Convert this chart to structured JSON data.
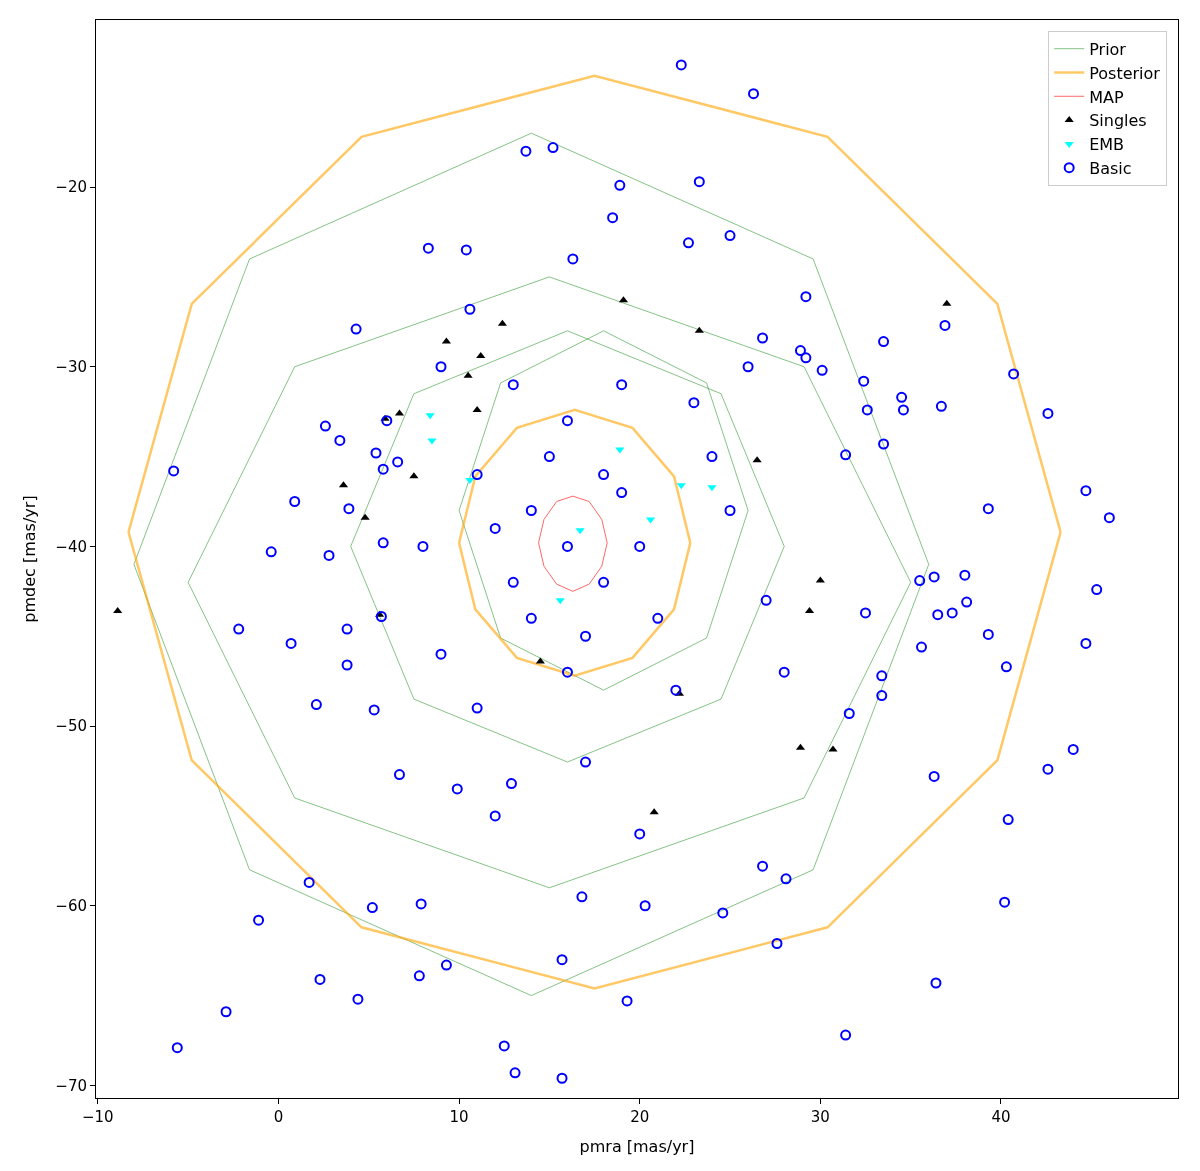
{
  "chart_data": {
    "type": "line",
    "xlabel": "pmra [mas/yr]",
    "ylabel": "pmdec [mas/yr]",
    "xlim": [
      -10.1,
      49.8
    ],
    "ylim": [
      -70.7,
      -10.7
    ],
    "xticks": [
      -10,
      0,
      10,
      20,
      30,
      40
    ],
    "yticks": [
      -70,
      -60,
      -50,
      -40,
      -30,
      -20
    ],
    "legend": "top right",
    "series": [
      {
        "name": "Prior",
        "color": "#008000",
        "marker": "none",
        "line_style": "solid",
        "x": [
          4,
          7.5,
          16,
          24.5,
          28
        ],
        "values": [
          -40,
          -31.5,
          -28,
          -31.5,
          -40
        ]
      },
      {
        "color": "#008000",
        "marker": "none",
        "line_style": "solid",
        "x": [
          4,
          7.5,
          16,
          24.5,
          28
        ],
        "values": [
          -40,
          -48.5,
          -52,
          -48.5,
          -40
        ]
      },
      {
        "color": "#008000",
        "marker": "none",
        "line_style": "solid",
        "x": [
          -5,
          0.9,
          15,
          29.1,
          35
        ],
        "values": [
          -42,
          -30,
          -25,
          -30,
          -42
        ]
      },
      {
        "color": "#008000",
        "marker": "none",
        "line_style": "solid",
        "x": [
          -5,
          0.9,
          15,
          29.1,
          35
        ],
        "values": [
          -42,
          -54,
          -59,
          -54,
          -42
        ]
      },
      {
        "color": "#008000",
        "marker": "none",
        "line_style": "solid",
        "x": [
          10,
          12.3,
          18,
          23.7,
          26
        ],
        "values": [
          -38,
          -30.9,
          -28,
          -30.9,
          -38
        ]
      },
      {
        "color": "#008000",
        "marker": "none",
        "line_style": "solid",
        "x": [
          10,
          12.3,
          18,
          23.7,
          26
        ],
        "values": [
          -38,
          -45.1,
          -48,
          -45.1,
          -38
        ]
      },
      {
        "color": "#008000",
        "marker": "none",
        "line_style": "solid",
        "x": [
          -8,
          -1.6,
          14,
          29.6,
          36
        ],
        "values": [
          -41,
          -24,
          -17,
          -24,
          -41
        ]
      },
      {
        "color": "#008000",
        "marker": "none",
        "line_style": "solid",
        "x": [
          -8,
          -1.6,
          14,
          29.6,
          36
        ],
        "values": [
          -41,
          -58,
          -65,
          -58,
          -41
        ]
      },
      {
        "name": "Posterior",
        "color": "#ffa500",
        "marker": "none",
        "line_style": "solid",
        "x": [
          -8.3,
          -4.8,
          4.6,
          17.5,
          30.4,
          39.8,
          43.3
        ],
        "values": [
          -39.2,
          -26.5,
          -17.2,
          -13.8,
          -17.2,
          -26.5,
          -39.2
        ]
      },
      {
        "color": "#ffa500",
        "marker": "none",
        "line_style": "solid",
        "x": [
          -8.3,
          -4.8,
          4.6,
          17.5,
          30.4,
          39.8,
          43.3
        ],
        "values": [
          -39.2,
          -51.9,
          -61.2,
          -64.6,
          -61.2,
          -51.9,
          -39.2
        ]
      },
      {
        "color": "#ffa500",
        "marker": "none",
        "line_style": "solid",
        "x": [
          10.0,
          10.9,
          13.2,
          16.4,
          19.6,
          21.9,
          22.8
        ],
        "values": [
          -39.8,
          -36.1,
          -33.4,
          -32.4,
          -33.4,
          -36.1,
          -39.8
        ]
      },
      {
        "color": "#ffa500",
        "marker": "none",
        "line_style": "solid",
        "x": [
          10.0,
          10.9,
          13.2,
          16.4,
          19.6,
          21.9,
          22.8
        ],
        "values": [
          -39.8,
          -43.5,
          -46.2,
          -47.2,
          -46.2,
          -43.5,
          -39.8
        ]
      },
      {
        "name": "MAP",
        "color": "#ff0000",
        "marker": "none",
        "line_style": "solid",
        "x": [
          14.4,
          14.7,
          15.4,
          16.3,
          17.2,
          17.9,
          18.2
        ],
        "values": [
          -39.8,
          -38.5,
          -37.5,
          -37.2,
          -37.5,
          -38.5,
          -39.8
        ]
      },
      {
        "color": "#ff0000",
        "marker": "none",
        "line_style": "solid",
        "x": [
          14.4,
          14.7,
          15.4,
          16.3,
          17.2,
          17.9,
          18.2
        ],
        "values": [
          -39.8,
          -41.1,
          -42.1,
          -42.5,
          -42.1,
          -41.1,
          -39.8
        ]
      },
      {
        "name": "Singles",
        "type": "scatter",
        "color": "#000000",
        "marker": "triangle",
        "x": [
          -8.9,
          3.6,
          4.8,
          5.6,
          5.9,
          6.7,
          7.5,
          9.3,
          10.5,
          12.4,
          19.1,
          23.3,
          37.0,
          26.5,
          22.2,
          20.8,
          28.9,
          30.7,
          29.4,
          30.0,
          14.5,
          11.0,
          11.2
        ],
        "values": [
          -43.6,
          -36.6,
          -38.4,
          -43.8,
          -32.9,
          -32.6,
          -36.1,
          -28.6,
          -30.5,
          -27.6,
          -26.3,
          -28.0,
          -26.5,
          -35.2,
          -48.2,
          -54.8,
          -51.2,
          -51.3,
          -43.6,
          -41.9,
          -46.4,
          -32.4,
          -29.4
        ]
      },
      {
        "name": "EMB",
        "type": "scatter",
        "color": "#00ffff",
        "marker": "triangle_down",
        "x": [
          8.4,
          8.5,
          22.3,
          24.0,
          16.7,
          18.9,
          10.6,
          15.6,
          20.6
        ],
        "values": [
          -32.7,
          -34.1,
          -36.6,
          -36.7,
          -39.1,
          -34.6,
          -36.3,
          -43.0,
          -38.5
        ]
      },
      {
        "name": "Basic",
        "type": "scatter",
        "color": "#0000ff",
        "marker": "circle",
        "x": [
          22.3,
          26.3,
          15.2,
          13.7,
          23.3,
          18.9,
          18.5,
          8.3,
          10.4,
          25.0,
          22.7,
          16.3,
          29.2,
          10.6,
          4.3,
          36.9,
          26.8,
          33.5,
          28.9,
          29.2,
          40.7,
          32.4,
          30.1,
          34.6,
          36.7,
          34.5,
          32.6,
          42.6,
          2.6,
          3.4,
          5.4,
          33.5,
          31.4,
          -5.8,
          5.8,
          6.6,
          44.7,
          46.0,
          39.3,
          0.9,
          3.9,
          -0.4,
          2.8,
          5.8,
          35.5,
          38.0,
          36.3,
          45.3,
          36.5,
          37.3,
          38.1,
          32.5,
          -2.2,
          3.8,
          5.7,
          0.7,
          35.6,
          39.3,
          40.3,
          33.4,
          33.4,
          2.1,
          3.8,
          31.6,
          44.7,
          42.6,
          44.0,
          36.3,
          40.4,
          5.3,
          6.7,
          9.9,
          12.9,
          1.7,
          -1.1,
          5.2,
          7.9,
          16.8,
          20.3,
          24.6,
          26.8,
          28.1,
          27.6,
          15.7,
          9.3,
          7.8,
          2.3,
          4.4,
          40.2,
          -2.9,
          -5.6,
          12.5,
          13.1,
          15.7,
          31.4,
          36.4,
          19.3,
          16,
          14,
          18,
          13,
          19,
          15,
          17,
          12,
          20,
          14,
          18,
          11,
          21,
          16,
          16,
          13,
          19,
          9,
          23,
          25,
          8,
          22,
          11,
          24,
          9,
          27,
          26,
          6,
          28,
          12,
          20,
          17
        ],
        "values": [
          -13.2,
          -14.8,
          -17.8,
          -18.0,
          -19.7,
          -19.9,
          -21.7,
          -23.4,
          -23.5,
          -22.7,
          -23.1,
          -24.0,
          -26.1,
          -26.8,
          -27.9,
          -27.7,
          -28.4,
          -28.6,
          -29.1,
          -29.5,
          -30.4,
          -30.8,
          -30.2,
          -32.4,
          -32.2,
          -31.7,
          -32.4,
          -32.6,
          -33.3,
          -34.1,
          -34.8,
          -34.3,
          -34.9,
          -35.8,
          -35.7,
          -35.3,
          -36.9,
          -38.4,
          -37.9,
          -37.5,
          -37.9,
          -40.3,
          -40.5,
          -39.8,
          -41.9,
          -41.6,
          -41.7,
          -42.4,
          -43.8,
          -43.7,
          -43.1,
          -43.7,
          -44.6,
          -44.6,
          -43.9,
          -45.4,
          -45.6,
          -44.9,
          -46.7,
          -47.2,
          -48.3,
          -48.8,
          -46.6,
          -49.3,
          -45.4,
          -52.4,
          -51.3,
          -52.8,
          -55.2,
          -49.1,
          -52.7,
          -53.5,
          -53.2,
          -58.7,
          -60.8,
          -60.1,
          -59.9,
          -59.5,
          -60.0,
          -60.4,
          -57.8,
          -58.5,
          -62.1,
          -63.0,
          -63.3,
          -63.9,
          -64.1,
          -65.2,
          -59.8,
          -65.9,
          -67.9,
          -67.8,
          -69.3,
          -69.6,
          -67.2,
          -64.3,
          -65.3,
          -40,
          -38,
          -42,
          -42,
          -37,
          -35,
          -45,
          -39,
          -40,
          -44,
          -36,
          -36,
          -44,
          -33,
          -47,
          -31,
          -31,
          -30,
          -32,
          -38,
          -40,
          -48,
          -49,
          -35,
          -46,
          -43,
          -30,
          -33,
          -47,
          -55,
          -56,
          -52
        ]
      }
    ]
  }
}
